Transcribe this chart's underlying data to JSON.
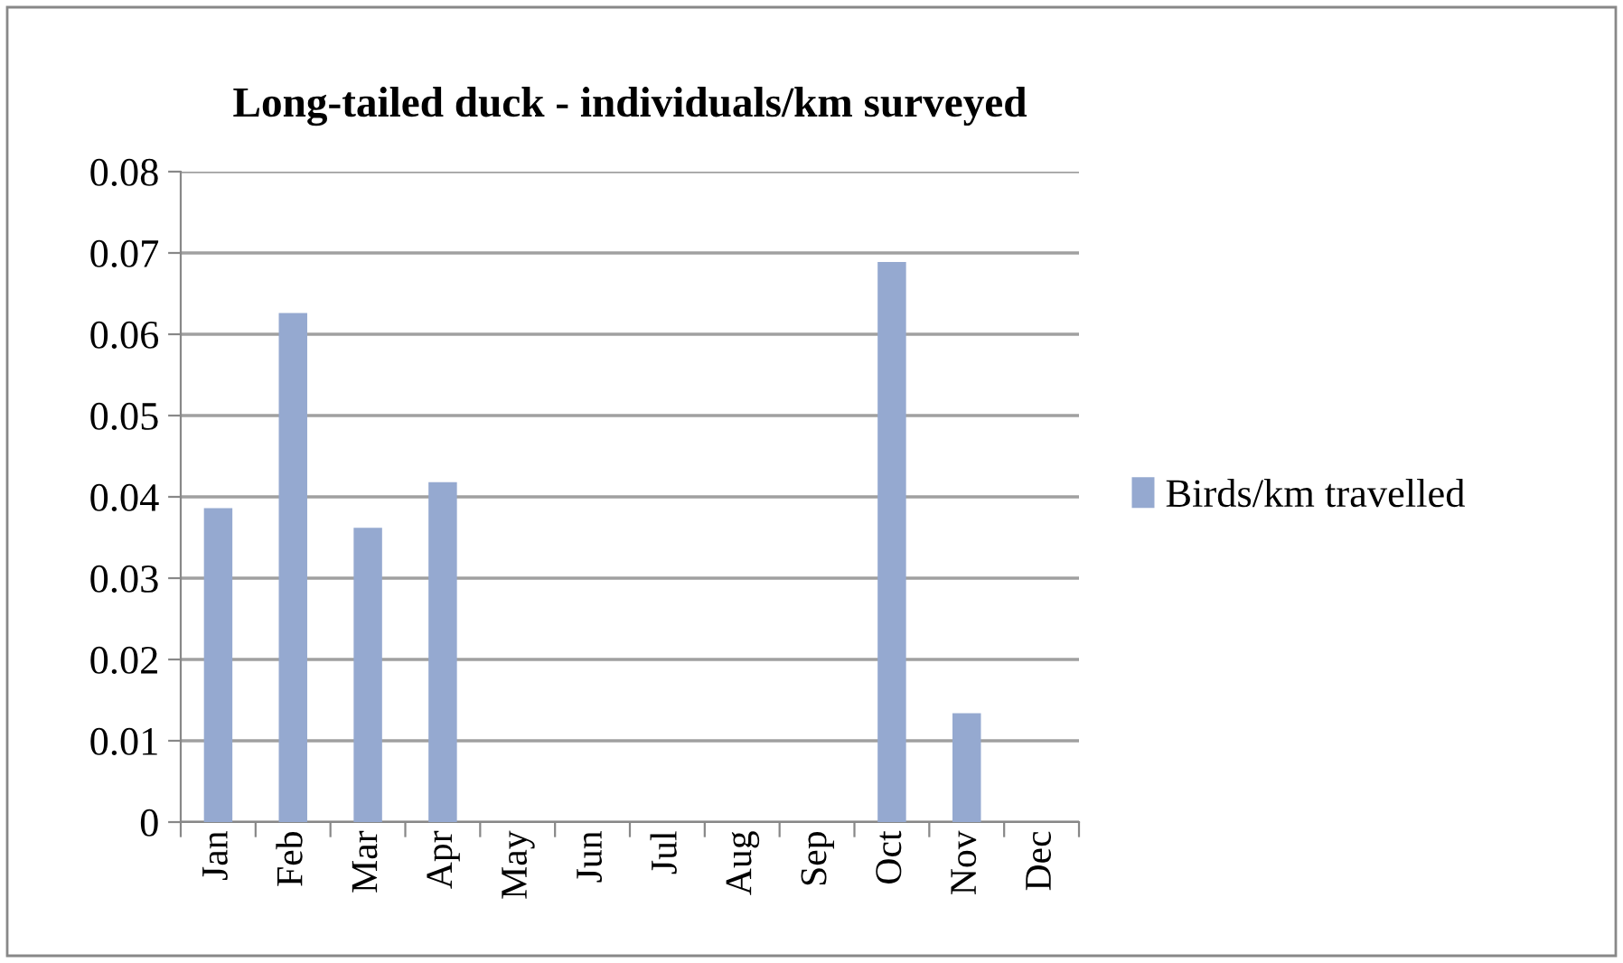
{
  "chart_data": {
    "type": "bar",
    "title": "Long-tailed duck - individuals/km surveyed",
    "categories": [
      "Jan",
      "Feb",
      "Mar",
      "Apr",
      "May",
      "Jun",
      "Jul",
      "Aug",
      "Sep",
      "Oct",
      "Nov",
      "Dec"
    ],
    "series": [
      {
        "name": "Birds/km travelled",
        "color": "#95a9d0",
        "values": [
          0.0386,
          0.0626,
          0.0362,
          0.0418,
          0,
          0,
          0,
          0,
          0,
          0.0689,
          0.0134,
          0
        ]
      }
    ],
    "ylim": [
      0,
      0.08
    ],
    "yticks": [
      {
        "value": 0,
        "label": "0"
      },
      {
        "value": 0.01,
        "label": "0.01"
      },
      {
        "value": 0.02,
        "label": "0.02"
      },
      {
        "value": 0.03,
        "label": "0.03"
      },
      {
        "value": 0.04,
        "label": "0.04"
      },
      {
        "value": 0.05,
        "label": "0.05"
      },
      {
        "value": 0.06,
        "label": "0.06"
      },
      {
        "value": 0.07,
        "label": "0.07"
      },
      {
        "value": 0.08,
        "label": "0.08"
      }
    ],
    "grid": "y",
    "legend": "right"
  }
}
